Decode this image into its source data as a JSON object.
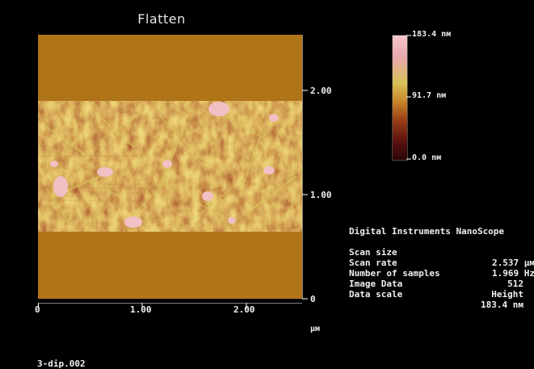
{
  "title": "Flatten",
  "image": {
    "colors": {
      "background": "#000000",
      "band": "#b07418",
      "text": "#f0f0f0"
    }
  },
  "x_axis": {
    "ticks": [
      "0",
      "1.00",
      "2.00"
    ],
    "unit": "µм"
  },
  "y_axis": {
    "ticks": [
      "0",
      "1.00",
      "2.00"
    ]
  },
  "color_scale": {
    "max_label": "183.4 nм",
    "mid_label": "91.7 nм",
    "min_label": "0.0 nм",
    "stops": [
      "#f6c8cc",
      "#e8a7ab",
      "#d8c25a",
      "#c88a2a",
      "#9a3e16",
      "#5a120e",
      "#2a0606"
    ]
  },
  "info": {
    "header": "Digital Instruments NanoScope",
    "rows": [
      {
        "label": "Scan size",
        "value": "2.537 µм"
      },
      {
        "label": "Scan rate",
        "value": "1.969 Hz"
      },
      {
        "label": "Number of samples",
        "value": "512"
      },
      {
        "label": "Image Data",
        "value": "Height"
      },
      {
        "label": "Data scale",
        "value": "183.4 nм"
      }
    ]
  },
  "filename": "3-dip.002"
}
